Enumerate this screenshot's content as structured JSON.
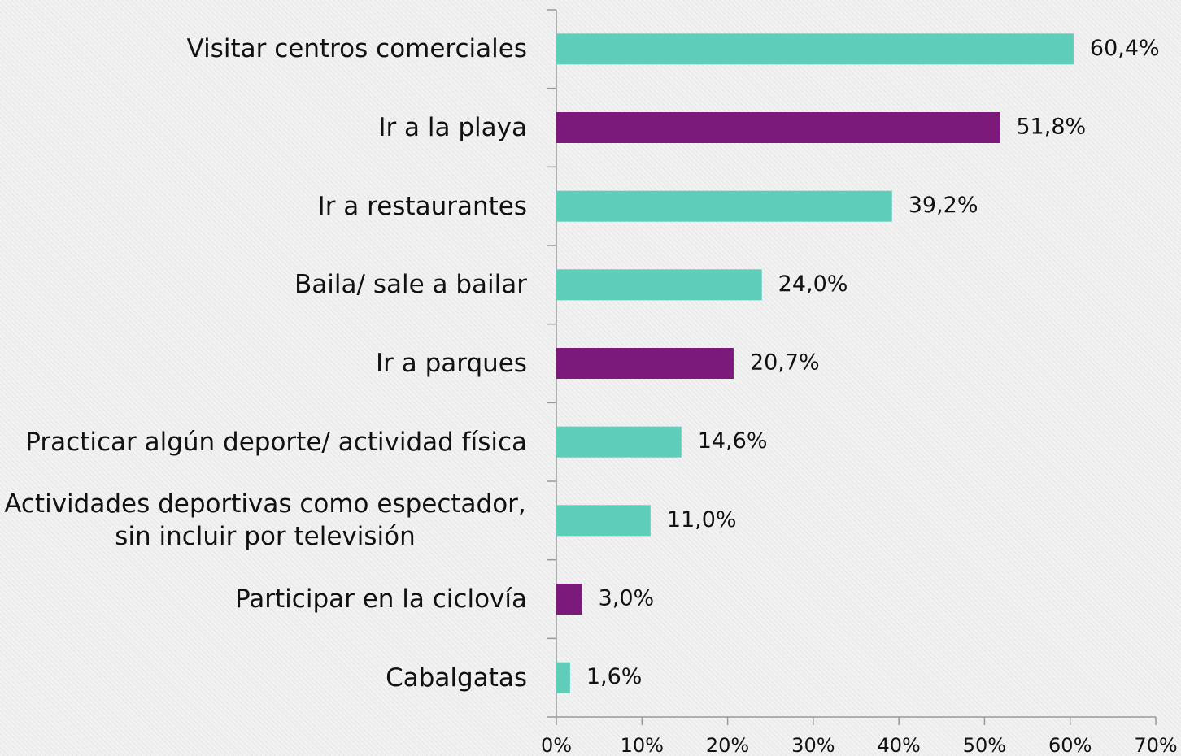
{
  "chart_data": {
    "type": "bar",
    "orientation": "horizontal",
    "categories": [
      "Visitar centros comerciales",
      "Ir a la playa",
      "Ir a restaurantes",
      "Baila/ sale a bailar",
      "Ir a parques",
      "Practicar algún deporte/ actividad física",
      "Actividades deportivas como espectador, sin incluir por televisión",
      "Participar en la ciclovía",
      "Cabalgatas"
    ],
    "values": [
      60.4,
      51.8,
      39.2,
      24.0,
      20.7,
      14.6,
      11.0,
      3.0,
      1.6
    ],
    "value_labels": [
      "60,4%",
      "51,8%",
      "39,2%",
      "24,0%",
      "20,7%",
      "14,6%",
      "11,0%",
      "3,0%",
      "1,6%"
    ],
    "colors": [
      "#5ecdb9",
      "#7b1a7b",
      "#5ecdb9",
      "#5ecdb9",
      "#7b1a7b",
      "#5ecdb9",
      "#5ecdb9",
      "#7b1a7b",
      "#5ecdb9"
    ],
    "xlim": [
      0,
      70
    ],
    "xticks": [
      {
        "value": 0,
        "label": "0%"
      },
      {
        "value": 10,
        "label": "10%"
      },
      {
        "value": 20,
        "label": "20%"
      },
      {
        "value": 30,
        "label": "30%"
      },
      {
        "value": 40,
        "label": "40%"
      },
      {
        "value": 50,
        "label": "50%"
      },
      {
        "value": 60,
        "label": "60%"
      },
      {
        "value": 70,
        "label": "70%"
      }
    ],
    "grid": false
  }
}
